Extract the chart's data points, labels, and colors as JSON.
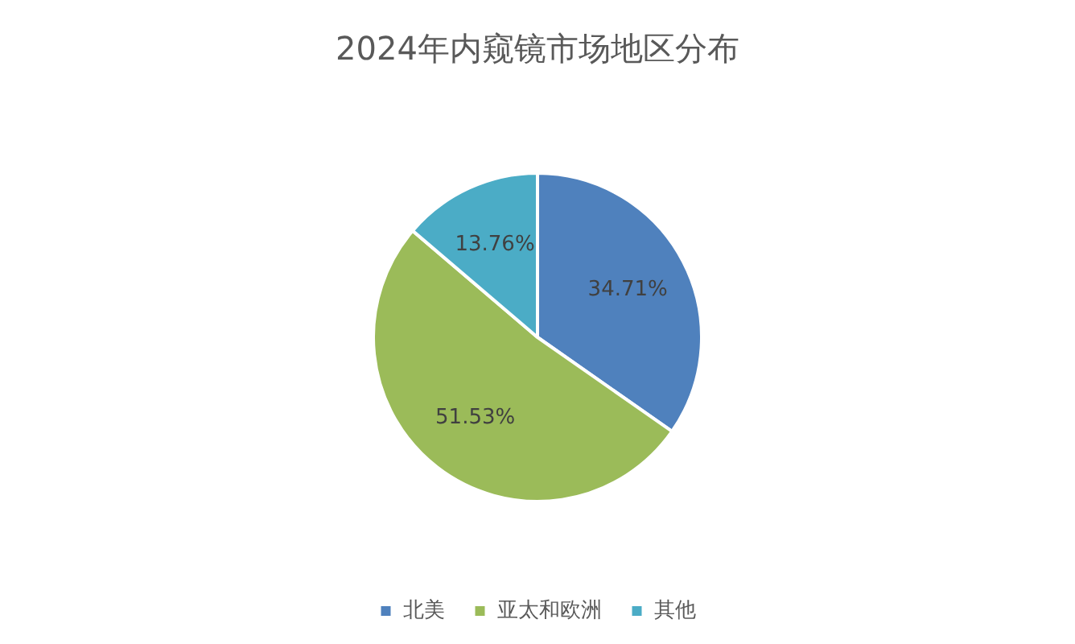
{
  "chart_data": {
    "type": "pie",
    "title": "2024年内窥镜市场地区分布",
    "categories": [
      "北美",
      "亚太和欧洲",
      "其他"
    ],
    "values": [
      34.71,
      51.53,
      13.76
    ],
    "colors": [
      "#4f81bd",
      "#9bbb59",
      "#4bacc6"
    ],
    "value_labels": [
      "34.71%",
      "51.53%",
      "13.76%"
    ],
    "legend": "bottom"
  }
}
